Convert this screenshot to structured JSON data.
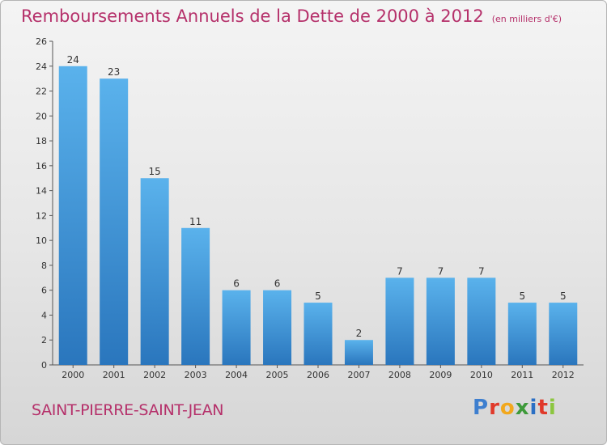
{
  "title": "Remboursements Annuels de la Dette de 2000 à 2012",
  "subtitle": "(en milliers d'€)",
  "town": "SAINT-PIERRE-SAINT-JEAN",
  "logo": {
    "text": "Proxiti",
    "colors": [
      "#3e7fcf",
      "#e0392a",
      "#f2a81d",
      "#3e9a3a",
      "#2b6fc4",
      "#e0392a",
      "#8cc63f"
    ]
  },
  "colors": {
    "bar_dark": "#2a76bd",
    "bar_light": "#5ab2ec",
    "accent": "#b5306a"
  },
  "chart_data": {
    "type": "bar",
    "title": "Remboursements Annuels de la Dette de 2000 à 2012",
    "subtitle": "(en milliers d'€)",
    "categories": [
      "2000",
      "2001",
      "2002",
      "2003",
      "2004",
      "2005",
      "2006",
      "2007",
      "2008",
      "2009",
      "2010",
      "2011",
      "2012"
    ],
    "values": [
      24,
      23,
      15,
      11,
      6,
      6,
      5,
      2,
      7,
      7,
      7,
      5,
      5
    ],
    "ylim": [
      0,
      26
    ],
    "yticks": [
      0,
      2,
      4,
      6,
      8,
      10,
      12,
      14,
      16,
      18,
      20,
      22,
      24,
      26
    ],
    "grid": false,
    "data_labels": true
  }
}
